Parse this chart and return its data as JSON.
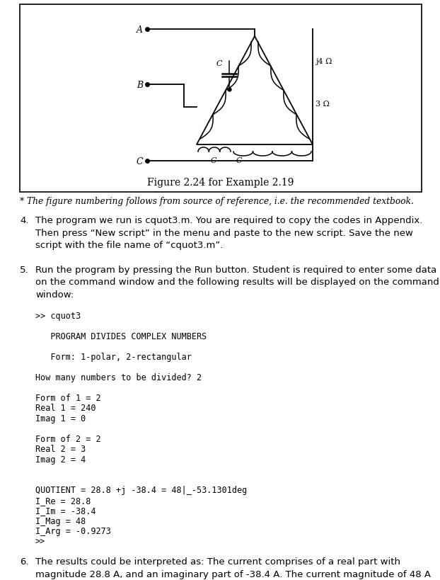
{
  "figure_caption": "Figure 2.24 for Example 2.19",
  "footnote": "* The figure numbering follows from source of reference, i.e. the recommended textbook.",
  "item4_label": "4.",
  "item4_text": "The program we run is cquot3.m. You are required to copy the codes in Appendix.\nThen press “New script” in the menu and paste to the new script. Save the new\nscript with the file name of “cquot3.m”.",
  "item5_label": "5.",
  "item5_text": "Run the program by pressing the Run button. Student is required to enter some data\non the command window and the following results will be displayed on the command\nwindow:",
  "item6_label": "6.",
  "item6_text": "The results could be interpreted as: The current comprises of a real part with\nmagnitude 28.8 A, and an imaginary part of -38.4 A. The current magnitude of 48 A",
  "code_lines": [
    ">> cquot3",
    "",
    "   PROGRAM DIVIDES COMPLEX NUMBERS",
    "",
    "   Form: 1-polar, 2-rectangular",
    "",
    "How many numbers to be divided? 2",
    "",
    "Form of 1 = 2",
    "Real 1 = 240",
    "Imag 1 = 0",
    "",
    "Form of 2 = 2",
    "Real 2 = 3",
    "Imag 2 = 4",
    "",
    "",
    "QUOTIENT = 28.8 +j -38.4 = 48|_-53.1301deg",
    "I_Re = 28.8",
    "I_Im = -38.4",
    "I_Mag = 48",
    "I_Arg = -0.9273",
    ">>"
  ],
  "bg_color": "#ffffff"
}
